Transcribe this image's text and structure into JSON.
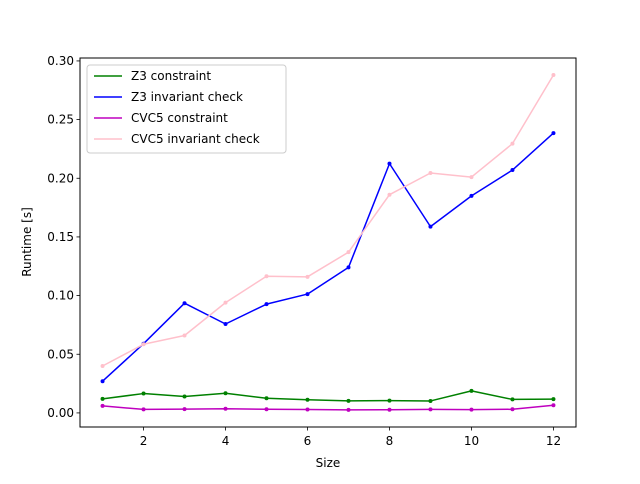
{
  "chart_data": {
    "type": "line",
    "title": "",
    "xlabel": "Size",
    "ylabel": "Runtime [s]",
    "xlim": [
      0.45,
      12.55
    ],
    "ylim": [
      -0.012,
      0.3025
    ],
    "xticks": [
      2,
      4,
      6,
      8,
      10,
      12
    ],
    "xtick_labels": [
      "2",
      "4",
      "6",
      "8",
      "10",
      "12"
    ],
    "yticks": [
      0.0,
      0.05,
      0.1,
      0.15,
      0.2,
      0.25,
      0.3
    ],
    "ytick_labels": [
      "0.00",
      "0.05",
      "0.10",
      "0.15",
      "0.20",
      "0.25",
      "0.30"
    ],
    "grid": false,
    "legend_position": "upper-left",
    "x": [
      1,
      2,
      3,
      4,
      5,
      6,
      7,
      8,
      9,
      10,
      11,
      12
    ],
    "series": [
      {
        "name": "Z3 constraint",
        "color": "#008000",
        "values": [
          0.012,
          0.0165,
          0.014,
          0.0168,
          0.0125,
          0.0112,
          0.0103,
          0.0105,
          0.0102,
          0.0188,
          0.0115,
          0.0118
        ]
      },
      {
        "name": "Z3 invariant check",
        "color": "#0000ff",
        "values": [
          0.027,
          0.059,
          0.0935,
          0.0758,
          0.0927,
          0.1013,
          0.124,
          0.2125,
          0.1588,
          0.185,
          0.207,
          0.2385
        ]
      },
      {
        "name": "CVC5 constraint",
        "color": "#bf00bf",
        "values": [
          0.006,
          0.003,
          0.0032,
          0.0036,
          0.0031,
          0.0029,
          0.0026,
          0.0027,
          0.003,
          0.0028,
          0.0031,
          0.0065
        ]
      },
      {
        "name": "CVC5 invariant check",
        "color": "#ffc0cb",
        "values": [
          0.04,
          0.0585,
          0.066,
          0.094,
          0.1165,
          0.116,
          0.137,
          0.186,
          0.2045,
          0.201,
          0.2295,
          0.288
        ]
      }
    ]
  }
}
